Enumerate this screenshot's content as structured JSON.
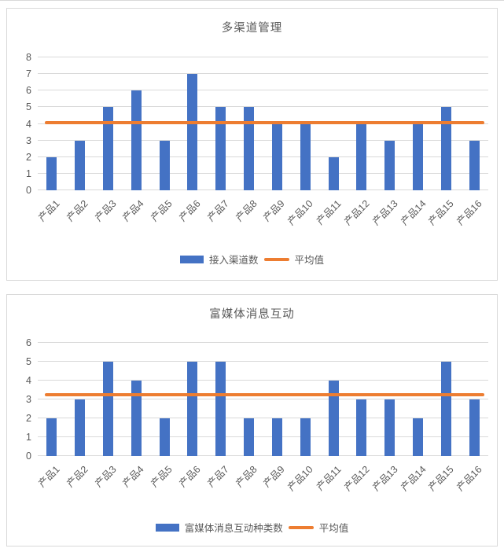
{
  "colors": {
    "bar": "#4472C4",
    "average_line": "#ED7D31",
    "gridline": "#D9D9D9",
    "panel_border": "#D9D9D9",
    "text": "#595959"
  },
  "chart_data": [
    {
      "type": "bar",
      "title": "多渠道管理",
      "categories": [
        "产品1",
        "产品2",
        "产品3",
        "产品4",
        "产品5",
        "产品6",
        "产品7",
        "产品8",
        "产品9",
        "产品10",
        "产品11",
        "产品12",
        "产品13",
        "产品14",
        "产品15",
        "产品16"
      ],
      "series": [
        {
          "name": "接入渠道数",
          "type": "bar",
          "values": [
            2,
            3,
            5,
            6,
            3,
            7,
            5,
            5,
            4,
            4,
            2,
            4,
            3,
            4,
            5,
            3
          ]
        },
        {
          "name": "平均值",
          "type": "line",
          "value": 4.0625
        }
      ],
      "xlabel": "",
      "ylabel": "",
      "ylim": [
        0,
        8
      ],
      "ytick_step": 1,
      "grid": true,
      "legend_position": "bottom",
      "x_label_rotation_deg": -45
    },
    {
      "type": "bar",
      "title": "富媒体消息互动",
      "categories": [
        "产品1",
        "产品2",
        "产品3",
        "产品4",
        "产品5",
        "产品6",
        "产品7",
        "产品8",
        "产品9",
        "产品10",
        "产品11",
        "产品12",
        "产品13",
        "产品14",
        "产品15",
        "产品16"
      ],
      "series": [
        {
          "name": "富媒体消息互动种类数",
          "type": "bar",
          "values": [
            2,
            3,
            5,
            4,
            2,
            5,
            5,
            2,
            2,
            2,
            4,
            3,
            3,
            2,
            5,
            3
          ]
        },
        {
          "name": "平均值",
          "type": "line",
          "value": 3.25
        }
      ],
      "xlabel": "",
      "ylabel": "",
      "ylim": [
        0,
        6
      ],
      "ytick_step": 1,
      "grid": true,
      "legend_position": "bottom",
      "x_label_rotation_deg": -45
    }
  ]
}
